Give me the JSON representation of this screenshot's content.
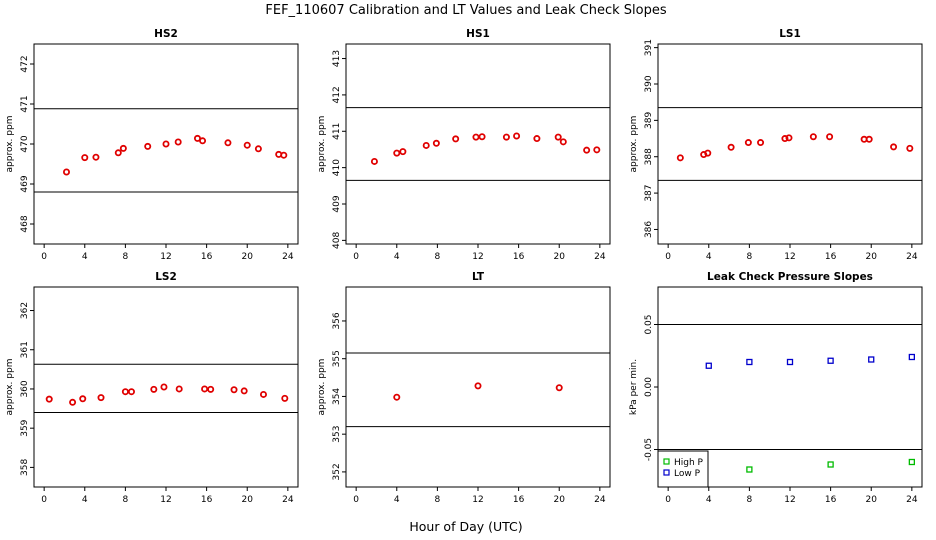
{
  "figure": {
    "title": "FEF_110607  Calibration and LT Values and Leak Check Slopes",
    "xlabel": "Hour of Day (UTC)"
  },
  "colors": {
    "calibration_points": "#e00000",
    "high_p": "#00bb00",
    "low_p": "#0000cc",
    "axes": "#000000"
  },
  "chart_data": [
    {
      "type": "scatter",
      "title": "HS2",
      "ylabel": "approx. ppm",
      "xlim": [
        -1,
        25
      ],
      "ylim": [
        467.5,
        472.5
      ],
      "xticks": [
        "0",
        "4",
        "8",
        "12",
        "16",
        "20",
        "24"
      ],
      "yticks": [
        "468",
        "469",
        "470",
        "471",
        "472"
      ],
      "hlines": [
        470.88,
        468.8
      ],
      "series": [
        {
          "x": [
            2.2,
            4.0,
            5.1,
            7.3,
            7.8,
            10.2,
            12.0,
            13.2,
            15.1,
            15.6,
            18.1,
            20.0,
            21.1,
            23.1,
            23.6
          ],
          "y": [
            469.3,
            469.66,
            469.67,
            469.78,
            469.89,
            469.94,
            470.0,
            470.05,
            470.14,
            470.08,
            470.03,
            469.97,
            469.88,
            469.74,
            469.72
          ]
        }
      ]
    },
    {
      "type": "scatter",
      "title": "HS1",
      "ylabel": "approx. ppm",
      "xlim": [
        -1,
        25
      ],
      "ylim": [
        407.9,
        413.4
      ],
      "xticks": [
        "0",
        "4",
        "8",
        "12",
        "16",
        "20",
        "24"
      ],
      "yticks": [
        "408",
        "409",
        "410",
        "411",
        "412",
        "413"
      ],
      "hlines": [
        411.65,
        409.65
      ],
      "series": [
        {
          "x": [
            1.8,
            4.0,
            4.6,
            6.9,
            7.9,
            9.8,
            11.8,
            12.4,
            14.8,
            15.8,
            17.8,
            19.9,
            20.4,
            22.7,
            23.7
          ],
          "y": [
            410.17,
            410.4,
            410.44,
            410.61,
            410.67,
            410.79,
            410.84,
            410.85,
            410.84,
            410.87,
            410.8,
            410.84,
            410.71,
            410.48,
            410.49
          ]
        }
      ]
    },
    {
      "type": "scatter",
      "title": "LS1",
      "ylabel": "approx. ppm",
      "xlim": [
        -1,
        25
      ],
      "ylim": [
        385.6,
        391.1
      ],
      "xticks": [
        "0",
        "4",
        "8",
        "12",
        "16",
        "20",
        "24"
      ],
      "yticks": [
        "386",
        "387",
        "388",
        "389",
        "390",
        "391"
      ],
      "hlines": [
        389.35,
        387.35
      ],
      "series": [
        {
          "x": [
            1.2,
            3.5,
            3.9,
            6.2,
            7.9,
            9.1,
            11.5,
            11.9,
            14.3,
            15.9,
            19.3,
            19.8,
            22.2,
            23.8
          ],
          "y": [
            387.97,
            388.06,
            388.1,
            388.26,
            388.39,
            388.39,
            388.5,
            388.52,
            388.55,
            388.55,
            388.48,
            388.48,
            388.27,
            388.23
          ]
        }
      ]
    },
    {
      "type": "scatter",
      "title": "LS2",
      "ylabel": "approx. ppm",
      "xlim": [
        -1,
        25
      ],
      "ylim": [
        357.5,
        362.6
      ],
      "xticks": [
        "0",
        "4",
        "8",
        "12",
        "16",
        "20",
        "24"
      ],
      "yticks": [
        "358",
        "359",
        "360",
        "361",
        "362"
      ],
      "hlines": [
        360.63,
        359.4
      ],
      "series": [
        {
          "x": [
            0.5,
            2.8,
            3.8,
            5.6,
            8.0,
            8.6,
            10.8,
            11.8,
            13.3,
            15.8,
            16.4,
            18.7,
            19.7,
            21.6,
            23.7
          ],
          "y": [
            359.74,
            359.66,
            359.75,
            359.78,
            359.93,
            359.93,
            359.99,
            360.05,
            360.0,
            360.0,
            359.99,
            359.98,
            359.95,
            359.86,
            359.76
          ]
        }
      ]
    },
    {
      "type": "scatter",
      "title": "LT",
      "ylabel": "approx. ppm",
      "xlim": [
        -1,
        25
      ],
      "ylim": [
        351.6,
        356.9
      ],
      "xticks": [
        "0",
        "4",
        "8",
        "12",
        "16",
        "20",
        "24"
      ],
      "yticks": [
        "352",
        "353",
        "354",
        "355",
        "356"
      ],
      "hlines": [
        355.15,
        353.2
      ],
      "series": [
        {
          "x": [
            4.0,
            12.0,
            20.0
          ],
          "y": [
            353.98,
            354.28,
            354.23
          ]
        }
      ]
    },
    {
      "type": "scatter",
      "title": "Leak Check Pressure Slopes",
      "ylabel": "kPa per min.",
      "xlim": [
        -1,
        25
      ],
      "ylim": [
        -0.08,
        0.08
      ],
      "xticks": [
        "0",
        "4",
        "8",
        "12",
        "16",
        "20",
        "24"
      ],
      "yticks": [
        "-0.05",
        "0.00",
        "0.05"
      ],
      "hlines": [
        0.05,
        -0.05
      ],
      "legend": {
        "position": "bottom-left",
        "entries": [
          "High P",
          "Low P"
        ]
      },
      "series": [
        {
          "name": "High P",
          "x": [
            8,
            16,
            24
          ],
          "y": [
            -0.066,
            -0.062,
            -0.06
          ]
        },
        {
          "name": "Low P",
          "x": [
            4,
            8,
            12,
            16,
            20,
            24
          ],
          "y": [
            0.017,
            0.02,
            0.02,
            0.021,
            0.022,
            0.024
          ]
        }
      ]
    }
  ]
}
